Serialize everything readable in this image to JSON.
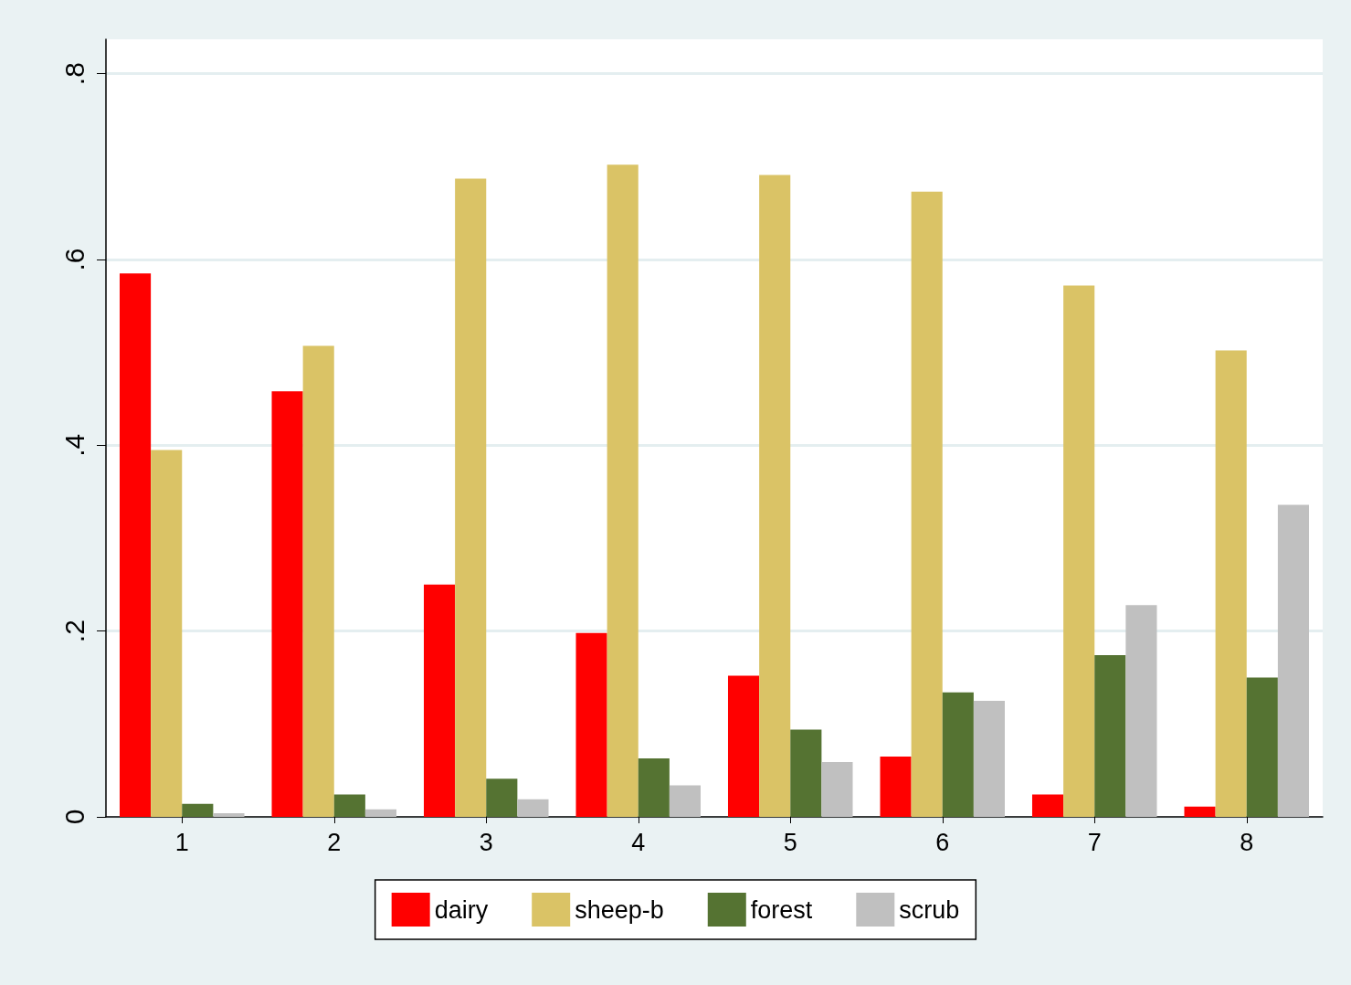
{
  "chart_data": {
    "type": "bar",
    "categories": [
      "1",
      "2",
      "3",
      "4",
      "5",
      "6",
      "7",
      "8"
    ],
    "series": [
      {
        "name": "dairy",
        "color": "#ff0000",
        "values": [
          0.585,
          0.458,
          0.25,
          0.198,
          0.152,
          0.065,
          0.024,
          0.011
        ]
      },
      {
        "name": "sheep-b",
        "color": "#dac366",
        "values": [
          0.395,
          0.507,
          0.687,
          0.702,
          0.691,
          0.673,
          0.572,
          0.502
        ]
      },
      {
        "name": "forest",
        "color": "#557332",
        "values": [
          0.014,
          0.024,
          0.041,
          0.063,
          0.094,
          0.134,
          0.174,
          0.15
        ]
      },
      {
        "name": "scrub",
        "color": "#c0c0c0",
        "values": [
          0.004,
          0.008,
          0.019,
          0.034,
          0.059,
          0.125,
          0.228,
          0.336
        ]
      }
    ],
    "ylim": [
      0,
      0.837
    ],
    "yticks": [
      0,
      {
        "value": 0.2,
        "label": ".2"
      },
      {
        "value": 0.4,
        "label": ".4"
      },
      {
        "value": 0.6,
        "label": ".6"
      },
      {
        "value": 0.8,
        "label": ".8"
      }
    ],
    "grid": "y",
    "legend": "bottom"
  }
}
